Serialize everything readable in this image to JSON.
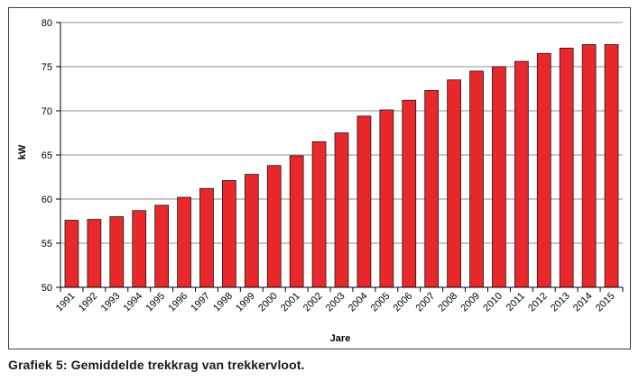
{
  "caption": "Grafiek 5: Gemiddelde trekkrag van trekkervloot.",
  "chart_data": {
    "type": "bar",
    "title": "",
    "xlabel": "Jare",
    "ylabel": "kW",
    "ylim": [
      50,
      80
    ],
    "yticks": [
      50,
      55,
      60,
      65,
      70,
      75,
      80
    ],
    "grid": true,
    "bar_color": "#e8282b",
    "categories": [
      "1991",
      "1992",
      "1993",
      "1994",
      "1995",
      "1996",
      "1997",
      "1998",
      "1999",
      "2000",
      "2001",
      "2002",
      "2003",
      "2004",
      "2005",
      "2006",
      "2007",
      "2008",
      "2009",
      "2010",
      "2011",
      "2012",
      "2013",
      "2014",
      "2015"
    ],
    "values": [
      57.6,
      57.7,
      58.0,
      58.7,
      59.3,
      60.2,
      61.2,
      62.1,
      62.8,
      63.8,
      64.9,
      66.5,
      67.5,
      69.4,
      70.1,
      71.2,
      72.3,
      73.5,
      74.5,
      75.0,
      75.6,
      76.5,
      77.1,
      77.5,
      77.5
    ]
  }
}
